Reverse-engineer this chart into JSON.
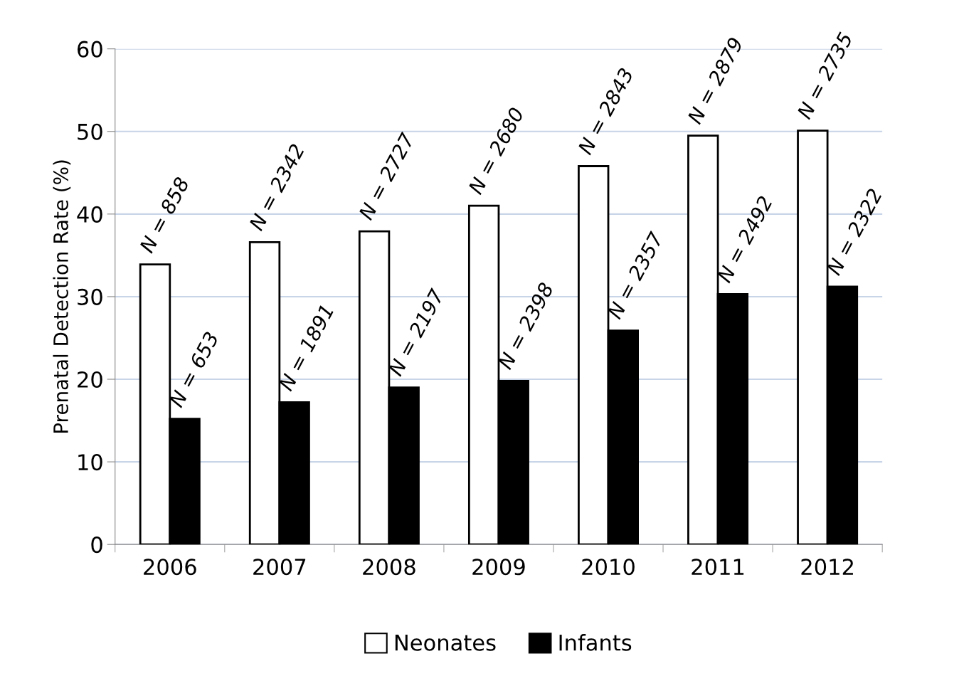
{
  "chart_data": {
    "type": "bar",
    "ylabel": "Prenatal Detection Rate (%)",
    "categories": [
      "2006",
      "2007",
      "2008",
      "2009",
      "2010",
      "2011",
      "2012"
    ],
    "series": [
      {
        "name": "Neonates",
        "color": "#ffffff",
        "values": [
          33.9,
          36.6,
          37.9,
          41.0,
          45.8,
          49.5,
          50.1
        ]
      },
      {
        "name": "Infants",
        "color": "#000000",
        "values": [
          15.2,
          17.2,
          19.0,
          19.8,
          25.9,
          30.3,
          31.2
        ]
      }
    ],
    "annotations": [
      {
        "text": "N = 858",
        "x": "2006",
        "y": 33.9
      },
      {
        "text": "N = 2342",
        "x": "2007",
        "y": 36.6
      },
      {
        "text": "N = 2727",
        "x": "2008",
        "y": 37.9
      },
      {
        "text": "N = 2680",
        "x": "2009",
        "y": 41.0
      },
      {
        "text": "N = 2843",
        "x": "2010",
        "y": 45.8
      },
      {
        "text": "N = 2879",
        "x": "2011",
        "y": 49.5
      },
      {
        "text": "N = 2735",
        "x": "2012",
        "y": 50.1
      },
      {
        "text": "N = 653",
        "x": "2006",
        "y": 15.2
      },
      {
        "text": "N = 1891",
        "x": "2007",
        "y": 17.2
      },
      {
        "text": "N = 2197",
        "x": "2008",
        "y": 19.0
      },
      {
        "text": "N = 2398",
        "x": "2009",
        "y": 19.8
      },
      {
        "text": "N = 2357",
        "x": "2010",
        "y": 25.9
      },
      {
        "text": "N = 2492",
        "x": "2011",
        "y": 30.3
      },
      {
        "text": "N = 2322",
        "x": "2012",
        "y": 31.2
      }
    ],
    "ylim": [
      0,
      60
    ],
    "yticks": [
      0,
      10,
      20,
      30,
      40,
      50,
      60
    ],
    "grid": "y",
    "legend": "bottom"
  }
}
